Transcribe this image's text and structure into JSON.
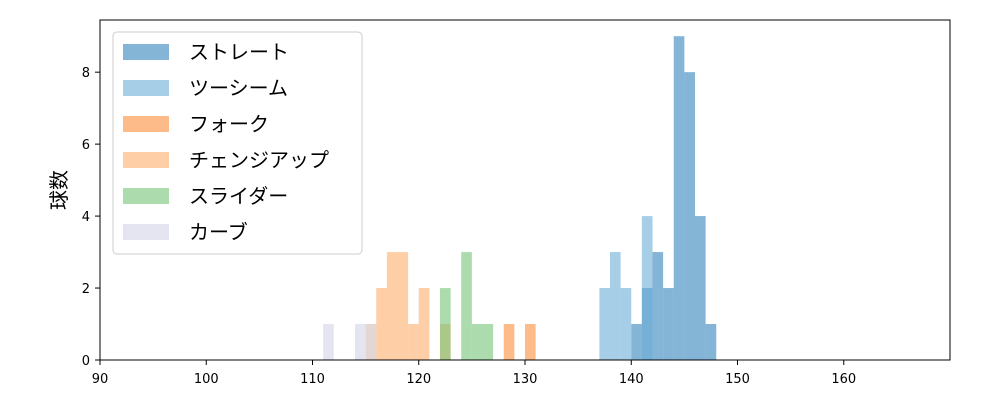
{
  "chart_data": {
    "type": "bar",
    "subtype": "overlapping-histogram",
    "ylabel": "球数",
    "xlim": [
      90,
      170
    ],
    "ylim": [
      0,
      9.45
    ],
    "xticks": [
      90,
      100,
      110,
      120,
      130,
      140,
      150,
      160
    ],
    "yticks": [
      0,
      2,
      4,
      6,
      8
    ],
    "bin_width": 1,
    "legend_position": "top-left",
    "grid": false,
    "series": [
      {
        "name": "ストレート",
        "color": "#1f77b4",
        "opacity": 0.55,
        "bins": [
          {
            "x": 140,
            "count": 1
          },
          {
            "x": 141,
            "count": 2
          },
          {
            "x": 142,
            "count": 3
          },
          {
            "x": 143,
            "count": 2
          },
          {
            "x": 144,
            "count": 9
          },
          {
            "x": 145,
            "count": 8
          },
          {
            "x": 146,
            "count": 4
          },
          {
            "x": 147,
            "count": 1
          }
        ]
      },
      {
        "name": "ツーシーム",
        "color": "#6baed6",
        "opacity": 0.6,
        "bins": [
          {
            "x": 137,
            "count": 2
          },
          {
            "x": 138,
            "count": 3
          },
          {
            "x": 139,
            "count": 2
          },
          {
            "x": 141,
            "count": 4
          }
        ]
      },
      {
        "name": "フォーク",
        "color": "#fd8d3c",
        "opacity": 0.6,
        "bins": [
          {
            "x": 128,
            "count": 1
          },
          {
            "x": 130,
            "count": 1
          }
        ]
      },
      {
        "name": "チェンジアップ",
        "color": "#fdae6b",
        "opacity": 0.6,
        "bins": [
          {
            "x": 115,
            "count": 1
          },
          {
            "x": 116,
            "count": 2
          },
          {
            "x": 117,
            "count": 3
          },
          {
            "x": 118,
            "count": 3
          },
          {
            "x": 119,
            "count": 1
          },
          {
            "x": 120,
            "count": 2
          },
          {
            "x": 122,
            "count": 1
          }
        ]
      },
      {
        "name": "スライダー",
        "color": "#74c476",
        "opacity": 0.6,
        "bins": [
          {
            "x": 122,
            "count": 2
          },
          {
            "x": 124,
            "count": 3
          },
          {
            "x": 125,
            "count": 1
          },
          {
            "x": 126,
            "count": 1
          }
        ]
      },
      {
        "name": "カーブ",
        "color": "#dadaeb",
        "opacity": 0.7,
        "bins": [
          {
            "x": 111,
            "count": 1
          },
          {
            "x": 114,
            "count": 1
          },
          {
            "x": 115,
            "count": 1
          }
        ]
      }
    ]
  }
}
